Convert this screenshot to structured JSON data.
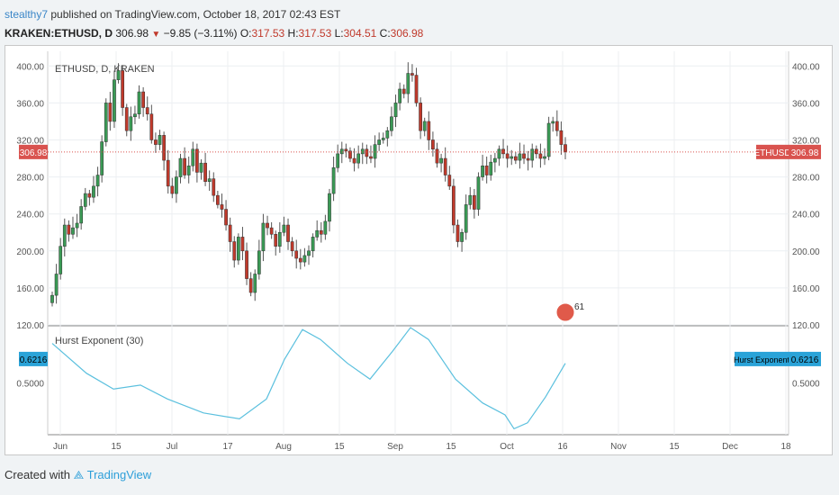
{
  "header": {
    "user": "stealthy7",
    "published_text": "published on TradingView.com, October 18, 2017 02:43 EST",
    "symbol": "KRAKEN:ETHUSD, D",
    "last": "306.98",
    "change": "−9.85 (−3.11%)",
    "open_label": "O:",
    "open": "317.53",
    "high_label": "H:",
    "high": "317.53",
    "low_label": "L:",
    "low": "304.51",
    "close_label": "C:",
    "close": "306.98"
  },
  "colors": {
    "up": "#3a9a55",
    "down": "#c0392b",
    "hurst": "#5bc0de",
    "price_line": "#d9534f",
    "badge_blue": "#2aa3d8"
  },
  "footer": {
    "created_with": "Created with",
    "brand": "TradingView"
  },
  "chart_data": {
    "type": "candlestick",
    "title": "ETHUSD, D, KRAKEN",
    "ylim": [
      120,
      410
    ],
    "y_ticks": [
      "400.00",
      "360.00",
      "320.00",
      "280.00",
      "240.00",
      "200.00",
      "160.00",
      "120.00"
    ],
    "x_ticks": [
      "Jun",
      "15",
      "Jul",
      "17",
      "Aug",
      "15",
      "Sep",
      "15",
      "Oct",
      "16",
      "Nov",
      "15",
      "Dec",
      "18"
    ],
    "last_price_label": "306.98",
    "price_label_right": "ETHUSD",
    "event_marker": "61",
    "series": [
      {
        "name": "ETHUSD",
        "close": [
          152,
          175,
          205,
          228,
          218,
          225,
          230,
          248,
          262,
          258,
          270,
          282,
          318,
          360,
          340,
          385,
          395,
          355,
          330,
          345,
          348,
          372,
          355,
          348,
          320,
          315,
          325,
          298,
          270,
          262,
          280,
          300,
          282,
          292,
          310,
          285,
          295,
          275,
          278,
          260,
          250,
          245,
          228,
          210,
          190,
          215,
          200,
          170,
          155,
          175,
          200,
          230,
          225,
          218,
          205,
          220,
          228,
          210,
          200,
          192,
          188,
          195,
          200,
          215,
          222,
          218,
          232,
          262,
          290,
          305,
          310,
          308,
          300,
          295,
          305,
          310,
          302,
          300,
          315,
          320,
          322,
          330,
          345,
          360,
          375,
          370,
          392,
          390,
          360,
          330,
          340,
          320,
          310,
          295,
          300,
          282,
          270,
          228,
          210,
          220,
          250,
          260,
          245,
          280,
          292,
          282,
          296,
          300,
          310,
          305,
          300,
          302,
          298,
          305,
          300,
          298,
          310,
          305,
          300,
          302,
          338,
          340,
          330,
          315,
          307
        ]
      },
      {
        "name": "Hurst Exponent (30)",
        "last": "0.6216",
        "ticks": [
          "0.5000"
        ]
      }
    ]
  }
}
